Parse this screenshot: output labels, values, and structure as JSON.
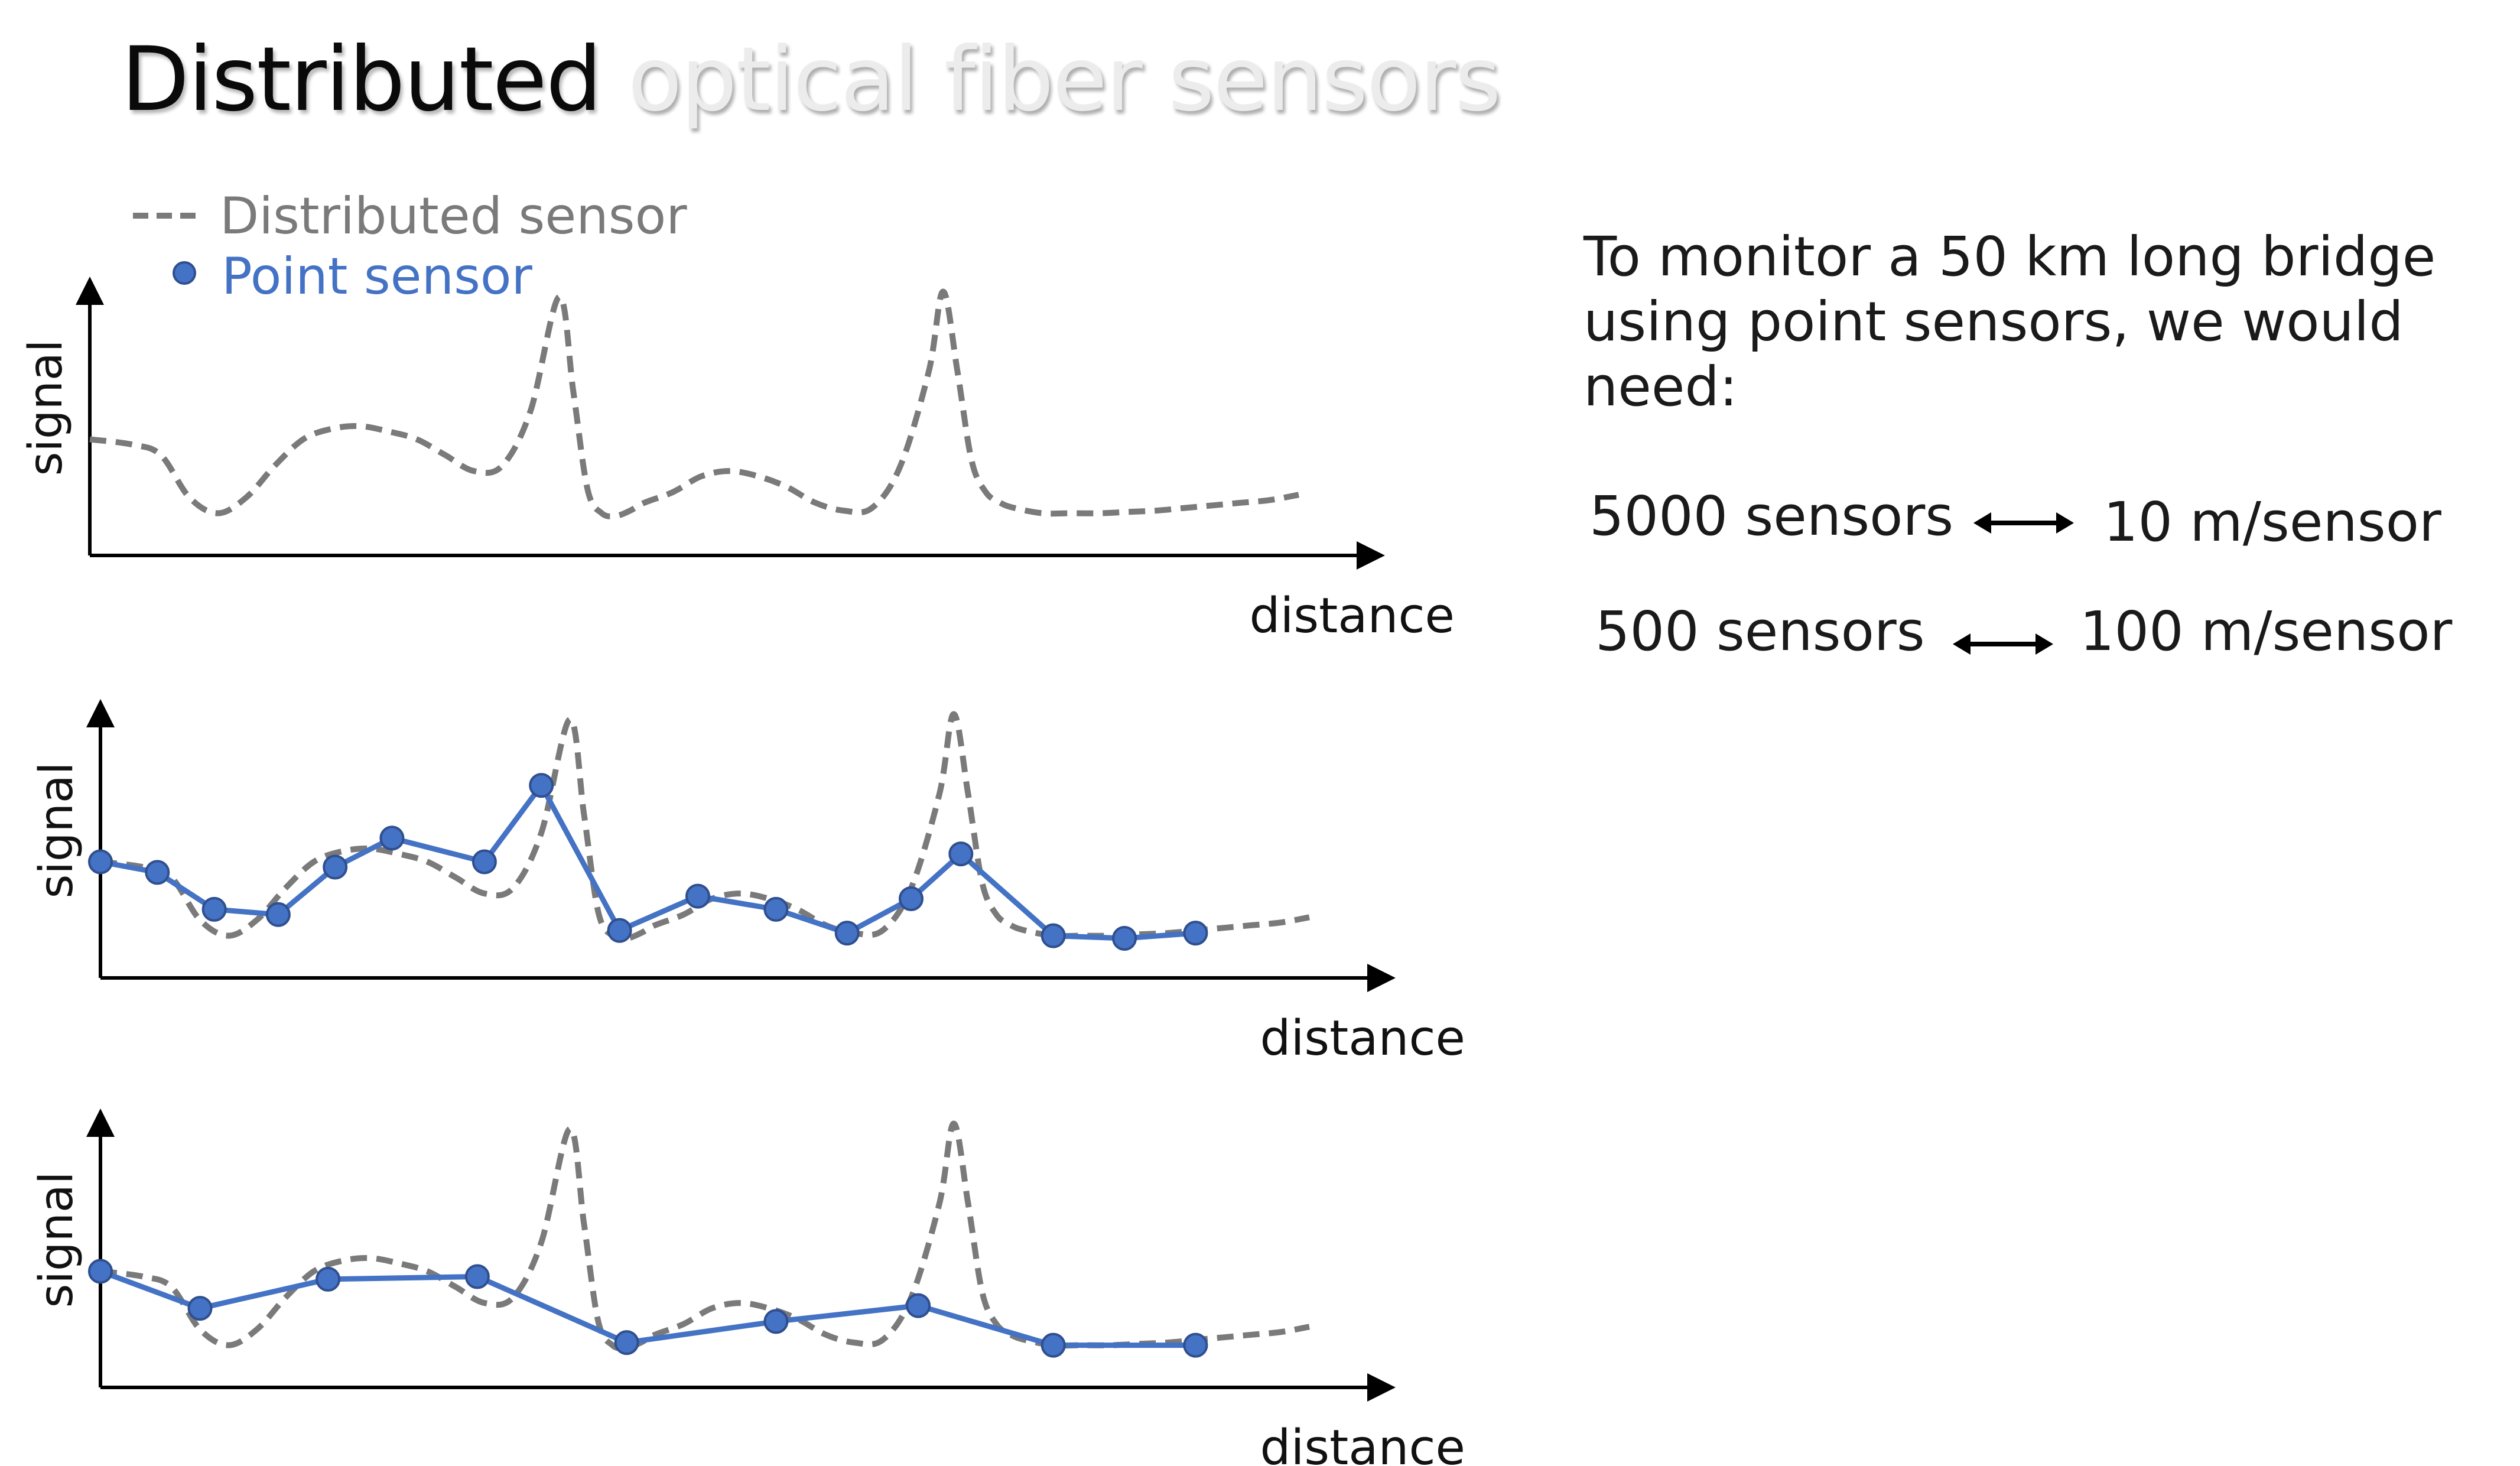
{
  "title": {
    "strong": "Distributed",
    "faded": "optical fiber sensors"
  },
  "legend": {
    "distributed": "Distributed sensor",
    "point": "Point sensor"
  },
  "axes": {
    "y_label": "signal",
    "x_label": "distance"
  },
  "colors": {
    "distributed": "#7a7a7a",
    "point": "#4472c4",
    "point_edge": "#2f4f8f",
    "axis": "#000000"
  },
  "intro_lines": [
    "To monitor a 50 km long bridge",
    "using point sensors, we would",
    "need:"
  ],
  "comparisons": [
    {
      "sensors": "5000 sensors",
      "spacing": "10 m/sensor"
    },
    {
      "sensors": "500 sensors",
      "spacing": "100 m/sensor"
    }
  ],
  "chart_data": {
    "type": "line",
    "distributed_signal": {
      "x": [
        0,
        3,
        5,
        7,
        9,
        11,
        13,
        15,
        17,
        19,
        21,
        23,
        25,
        27,
        29,
        31,
        33,
        34,
        35,
        36,
        37,
        38,
        39,
        41,
        43,
        45,
        47,
        49,
        51,
        53,
        55,
        57,
        59,
        60,
        61,
        62,
        63,
        64,
        65,
        67,
        69,
        71,
        73,
        75,
        77,
        79,
        81,
        83,
        85
      ],
      "y": [
        0.44,
        0.42,
        0.38,
        0.22,
        0.16,
        0.22,
        0.34,
        0.44,
        0.48,
        0.49,
        0.47,
        0.44,
        0.38,
        0.32,
        0.34,
        0.55,
        0.98,
        0.62,
        0.25,
        0.16,
        0.15,
        0.17,
        0.2,
        0.24,
        0.3,
        0.32,
        0.3,
        0.26,
        0.2,
        0.17,
        0.18,
        0.34,
        0.7,
        1.0,
        0.7,
        0.36,
        0.24,
        0.2,
        0.18,
        0.16,
        0.16,
        0.16,
        0.165,
        0.17,
        0.18,
        0.19,
        0.2,
        0.21,
        0.23
      ]
    },
    "panels": [
      {
        "name": "distributed",
        "point_sensors": {
          "x": [],
          "y": []
        }
      },
      {
        "name": "dense",
        "point_sensors": {
          "x": [
            0,
            4,
            8,
            12.5,
            16.5,
            20.5,
            27,
            31,
            36.5,
            42,
            47.5,
            52.5,
            57,
            60.5,
            67,
            72,
            77
          ],
          "y": [
            0.44,
            0.4,
            0.26,
            0.24,
            0.42,
            0.53,
            0.44,
            0.73,
            0.18,
            0.31,
            0.26,
            0.17,
            0.3,
            0.47,
            0.16,
            0.15,
            0.17
          ]
        }
      },
      {
        "name": "sparse",
        "point_sensors": {
          "x": [
            0,
            7,
            16,
            26.5,
            37,
            47.5,
            57.5,
            67,
            77
          ],
          "y": [
            0.44,
            0.3,
            0.41,
            0.42,
            0.17,
            0.25,
            0.31,
            0.16,
            0.16
          ]
        }
      }
    ],
    "xlim": [
      0,
      90
    ],
    "ylim": [
      0,
      1.1
    ]
  }
}
